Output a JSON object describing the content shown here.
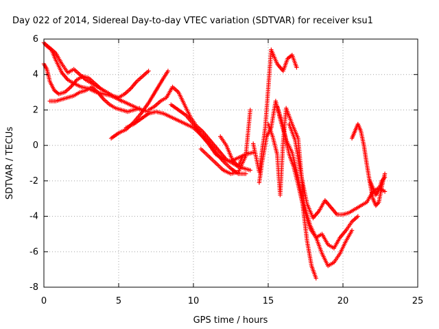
{
  "chart_data": {
    "type": "scatter",
    "title": "Day 022 of 2014, Sidereal Day-to-day VTEC variation (SDTVAR) for receiver ksu1",
    "xlabel": "GPS time / hours",
    "ylabel": "SDTVAR / TECUs",
    "xlim": [
      0,
      25
    ],
    "ylim": [
      -8,
      6
    ],
    "xticks": [
      "0",
      "5",
      "10",
      "15",
      "20",
      "25"
    ],
    "yticks": [
      "-8",
      "-6",
      "-4",
      "-2",
      "0",
      "2",
      "4",
      "6"
    ],
    "grid": true,
    "marker": "+",
    "color": "#ff0000",
    "series": [
      {
        "x": [
          0.0,
          0.2,
          0.5,
          0.8,
          1.2,
          1.6,
          2.0,
          2.5,
          3.0,
          3.5,
          4.0,
          4.5,
          5.0,
          5.5,
          6.0,
          6.5,
          7.0
        ],
        "y": [
          5.8,
          5.6,
          5.4,
          4.8,
          4.1,
          3.7,
          3.5,
          3.3,
          3.2,
          3.0,
          2.9,
          2.8,
          2.6,
          2.4,
          2.2,
          2.0,
          1.9
        ]
      },
      {
        "x": [
          0.0,
          0.2,
          0.4,
          0.7,
          1.0,
          1.4,
          1.8,
          2.2,
          2.6,
          3.0,
          3.4,
          3.8,
          4.2,
          4.6,
          5.0,
          5.4,
          5.8,
          6.2,
          6.6,
          7.0
        ],
        "y": [
          4.6,
          4.3,
          3.6,
          3.1,
          2.9,
          3.0,
          3.3,
          3.7,
          3.9,
          3.8,
          3.5,
          3.2,
          3.0,
          2.8,
          2.7,
          2.9,
          3.2,
          3.6,
          3.9,
          4.2
        ]
      },
      {
        "x": [
          0.4,
          0.8,
          1.2,
          1.6,
          2.0,
          2.4,
          2.8,
          3.2,
          3.6,
          4.0,
          4.4,
          4.8,
          5.2,
          5.6,
          6.0,
          6.4
        ],
        "y": [
          2.5,
          2.5,
          2.6,
          2.7,
          2.8,
          3.0,
          3.1,
          3.3,
          3.0,
          2.6,
          2.3,
          2.1,
          2.0,
          1.9,
          2.0,
          2.1
        ]
      },
      {
        "x": [
          0.1,
          0.4,
          0.8,
          1.2,
          1.6,
          2.0,
          2.4,
          2.8,
          3.2,
          3.6,
          4.0,
          4.4,
          4.8,
          5.2
        ],
        "y": [
          5.7,
          5.5,
          5.2,
          4.6,
          4.1,
          4.3,
          4.0,
          3.7,
          3.5,
          3.3,
          3.1,
          2.9,
          2.7,
          2.5
        ]
      },
      {
        "x": [
          4.5,
          5.0,
          5.5,
          6.0,
          6.5,
          7.0,
          7.5,
          8.0,
          8.3
        ],
        "y": [
          0.4,
          0.7,
          0.9,
          1.3,
          1.8,
          2.4,
          3.1,
          3.8,
          4.2
        ]
      },
      {
        "x": [
          5.5,
          6.0,
          6.5,
          7.0,
          7.5,
          8.0,
          8.5,
          9.0,
          9.5,
          10.0,
          10.5,
          11.0,
          11.5,
          12.0,
          12.5,
          13.0,
          13.5
        ],
        "y": [
          1.0,
          1.2,
          1.5,
          1.8,
          1.9,
          1.8,
          1.6,
          1.4,
          1.2,
          1.0,
          0.6,
          0.2,
          -0.4,
          -0.9,
          -1.3,
          -1.6,
          -1.6
        ]
      },
      {
        "x": [
          7.0,
          7.4,
          7.8,
          8.2,
          8.6,
          9.0,
          9.4,
          9.8,
          10.2,
          10.6,
          11.0,
          11.4,
          11.8,
          12.2,
          12.6,
          13.0,
          13.4,
          13.8
        ],
        "y": [
          2.0,
          2.2,
          2.5,
          2.7,
          3.3,
          3.0,
          2.3,
          1.6,
          1.1,
          0.8,
          0.4,
          0.0,
          -0.4,
          -0.8,
          -1.0,
          -1.2,
          -1.3,
          -1.4
        ]
      },
      {
        "x": [
          8.5,
          9.0,
          9.5,
          10.0,
          10.5,
          11.0,
          11.5,
          12.0,
          12.5,
          13.0,
          13.5,
          14.0
        ],
        "y": [
          2.3,
          2.0,
          1.7,
          1.2,
          0.6,
          0.1,
          -0.5,
          -0.8,
          -0.9,
          -0.7,
          -0.5,
          -0.4
        ]
      },
      {
        "x": [
          10.5,
          11.0,
          11.5,
          12.0,
          12.5,
          13.0,
          13.5,
          13.8
        ],
        "y": [
          -0.2,
          -0.6,
          -1.0,
          -1.4,
          -1.6,
          -1.5,
          -0.6,
          2.0
        ]
      },
      {
        "x": [
          11.8,
          12.2,
          12.6,
          13.0,
          13.3
        ],
        "y": [
          0.5,
          0.0,
          -0.8,
          -1.2,
          -0.6
        ]
      },
      {
        "x": [
          14.0,
          14.4,
          14.8,
          15.0,
          15.2,
          15.6,
          16.0,
          16.3,
          16.6,
          16.9
        ],
        "y": [
          0.1,
          -1.5,
          1.0,
          3.2,
          5.4,
          4.6,
          4.2,
          4.9,
          5.1,
          4.4
        ]
      },
      {
        "x": [
          14.4,
          14.6,
          14.9,
          15.2,
          15.5,
          15.8,
          16.1,
          16.4,
          16.7,
          17.0,
          17.3,
          17.6,
          17.9,
          18.2
        ],
        "y": [
          -2.1,
          -0.9,
          0.5,
          1.0,
          2.5,
          1.5,
          0.6,
          -0.5,
          -1.2,
          -2.2,
          -3.3,
          -5.4,
          -6.8,
          -7.5
        ]
      },
      {
        "x": [
          15.0,
          15.3,
          15.6,
          15.8,
          16.0,
          16.2,
          16.6,
          17.0,
          17.4,
          17.8,
          18.2,
          18.6,
          19.0,
          19.4,
          19.8,
          20.2,
          20.6
        ],
        "y": [
          1.2,
          0.5,
          -0.5,
          -2.8,
          0.2,
          2.1,
          1.2,
          0.4,
          -3.3,
          -4.5,
          -5.2,
          -6.1,
          -6.8,
          -6.6,
          -6.1,
          -5.4,
          -4.8
        ]
      },
      {
        "x": [
          15.6,
          15.9,
          16.2,
          16.6,
          17.0,
          17.4,
          17.8,
          18.2,
          18.6,
          19.0,
          19.4,
          19.8,
          20.2,
          20.6,
          21.0
        ],
        "y": [
          2.2,
          1.4,
          0.3,
          -0.4,
          -1.8,
          -3.6,
          -4.7,
          -5.2,
          -5.0,
          -5.6,
          -5.8,
          -5.2,
          -4.8,
          -4.3,
          -4.0
        ]
      },
      {
        "x": [
          16.4,
          16.8,
          17.2,
          17.6,
          18.0,
          18.4,
          18.8,
          19.2,
          19.6,
          20.0,
          20.4,
          20.8,
          21.2,
          21.6,
          22.0,
          22.4,
          22.8
        ],
        "y": [
          1.2,
          0.3,
          -1.7,
          -3.3,
          -4.1,
          -3.7,
          -3.1,
          -3.5,
          -3.9,
          -3.9,
          -3.8,
          -3.6,
          -3.4,
          -3.2,
          -2.6,
          -2.4,
          -2.6
        ]
      },
      {
        "x": [
          20.6,
          20.8,
          21.0,
          21.2,
          21.4,
          21.6,
          21.8,
          22.0,
          22.2,
          22.4,
          22.6,
          22.8
        ],
        "y": [
          0.4,
          0.8,
          1.2,
          0.8,
          0.0,
          -1.1,
          -2.1,
          -3.0,
          -3.4,
          -3.2,
          -2.3,
          -1.6
        ]
      },
      {
        "x": [
          21.8,
          22.0,
          22.2,
          22.4,
          22.6,
          22.8
        ],
        "y": [
          -2.0,
          -2.4,
          -2.8,
          -2.5,
          -2.0,
          -1.8
        ]
      }
    ]
  }
}
